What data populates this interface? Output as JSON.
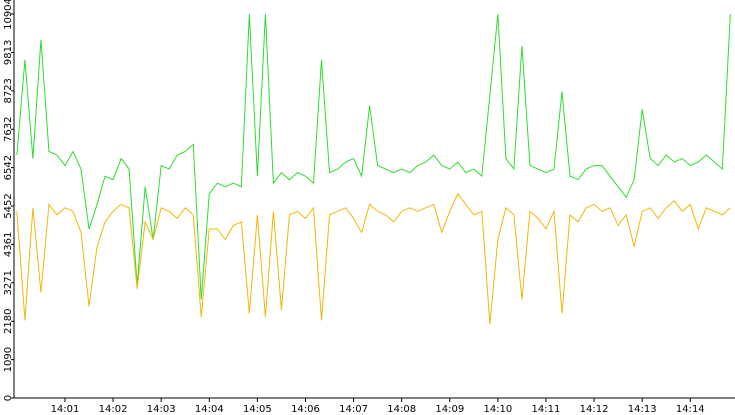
{
  "chart_data": {
    "type": "line",
    "x": [
      840,
      840.167,
      840.333,
      840.5,
      840.667,
      840.833,
      841,
      841.167,
      841.333,
      841.5,
      841.667,
      841.833,
      842,
      842.167,
      842.333,
      842.5,
      842.667,
      842.833,
      843,
      843.167,
      843.333,
      843.5,
      843.667,
      843.833,
      844,
      844.167,
      844.333,
      844.5,
      844.667,
      844.833,
      845,
      845.167,
      845.333,
      845.5,
      845.667,
      845.833,
      846,
      846.167,
      846.333,
      846.5,
      846.667,
      846.833,
      847,
      847.167,
      847.333,
      847.5,
      847.667,
      847.833,
      848,
      848.167,
      848.333,
      848.5,
      848.667,
      848.833,
      849,
      849.167,
      849.333,
      849.5,
      849.667,
      849.833,
      850,
      850.167,
      850.333,
      850.5,
      850.667,
      850.833,
      851,
      851.167,
      851.333,
      851.5,
      851.667,
      851.833,
      852,
      852.167,
      852.333,
      852.5,
      852.667,
      852.833,
      853,
      853.167,
      853.333,
      853.5,
      853.667,
      853.833,
      854,
      854.167,
      854.333,
      854.5,
      854.667,
      854.833
    ],
    "series": [
      {
        "color": "#2ddc2d",
        "values": [
          6900,
          9600,
          6800,
          10170,
          7000,
          6900,
          6600,
          7000,
          6500,
          4800,
          5500,
          6300,
          6200,
          6800,
          6500,
          3200,
          6000,
          4500,
          6600,
          6500,
          6900,
          7000,
          7200,
          2800,
          5800,
          6100,
          6000,
          6100,
          6000,
          10900,
          6300,
          10900,
          6100,
          6400,
          6200,
          6400,
          6300,
          6100,
          9600,
          6400,
          6500,
          6700,
          6800,
          6300,
          8300,
          6600,
          6500,
          6400,
          6500,
          6400,
          6600,
          6700,
          6900,
          6600,
          6500,
          6700,
          6400,
          6500,
          6300,
          8600,
          10900,
          6800,
          6500,
          10000,
          6600,
          6500,
          6400,
          6500,
          8700,
          6300,
          6200,
          6500,
          6600,
          6600,
          6300,
          6000,
          5700,
          6200,
          8200,
          6800,
          6600,
          6900,
          6700,
          6800,
          6600,
          6700,
          6900,
          6700,
          6500,
          10904
        ]
      },
      {
        "color": "#f2b705",
        "values": [
          5300,
          2200,
          5400,
          3000,
          5500,
          5200,
          5400,
          5300,
          4700,
          2600,
          4300,
          5000,
          5300,
          5500,
          5400,
          3100,
          5000,
          4500,
          5400,
          5300,
          5100,
          5400,
          5200,
          2300,
          4800,
          4800,
          4500,
          4900,
          5000,
          2400,
          5200,
          2300,
          5300,
          2500,
          5200,
          5300,
          5100,
          5400,
          2200,
          5200,
          5300,
          5400,
          5100,
          4700,
          5500,
          5300,
          5200,
          5000,
          5300,
          5400,
          5300,
          5400,
          5500,
          4700,
          5300,
          5800,
          5500,
          5200,
          5300,
          2100,
          4500,
          5400,
          5200,
          2800,
          5300,
          5100,
          4800,
          5300,
          2400,
          5200,
          5000,
          5400,
          5500,
          5300,
          5400,
          4900,
          5200,
          4300,
          5300,
          5400,
          5100,
          5400,
          5600,
          5300,
          5500,
          4800,
          5400,
          5300,
          5200,
          5400
        ]
      }
    ],
    "xlim": [
      839.94,
      854.93
    ],
    "ylim": [
      0,
      10904
    ],
    "xticks": [
      {
        "value": 841,
        "label": "14:01"
      },
      {
        "value": 842,
        "label": "14:02"
      },
      {
        "value": 843,
        "label": "14:03"
      },
      {
        "value": 844,
        "label": "14:04"
      },
      {
        "value": 845,
        "label": "14:05"
      },
      {
        "value": 846,
        "label": "14:06"
      },
      {
        "value": 847,
        "label": "14:07"
      },
      {
        "value": 848,
        "label": "14:08"
      },
      {
        "value": 849,
        "label": "14:09"
      },
      {
        "value": 850,
        "label": "14:10"
      },
      {
        "value": 851,
        "label": "14:11"
      },
      {
        "value": 852,
        "label": "14:12"
      },
      {
        "value": 853,
        "label": "14:13"
      },
      {
        "value": 854,
        "label": "14:14"
      }
    ],
    "yticks": [
      0,
      1090,
      2180,
      3271,
      4361,
      5452,
      6542,
      7632,
      8723,
      9813,
      10904
    ]
  }
}
